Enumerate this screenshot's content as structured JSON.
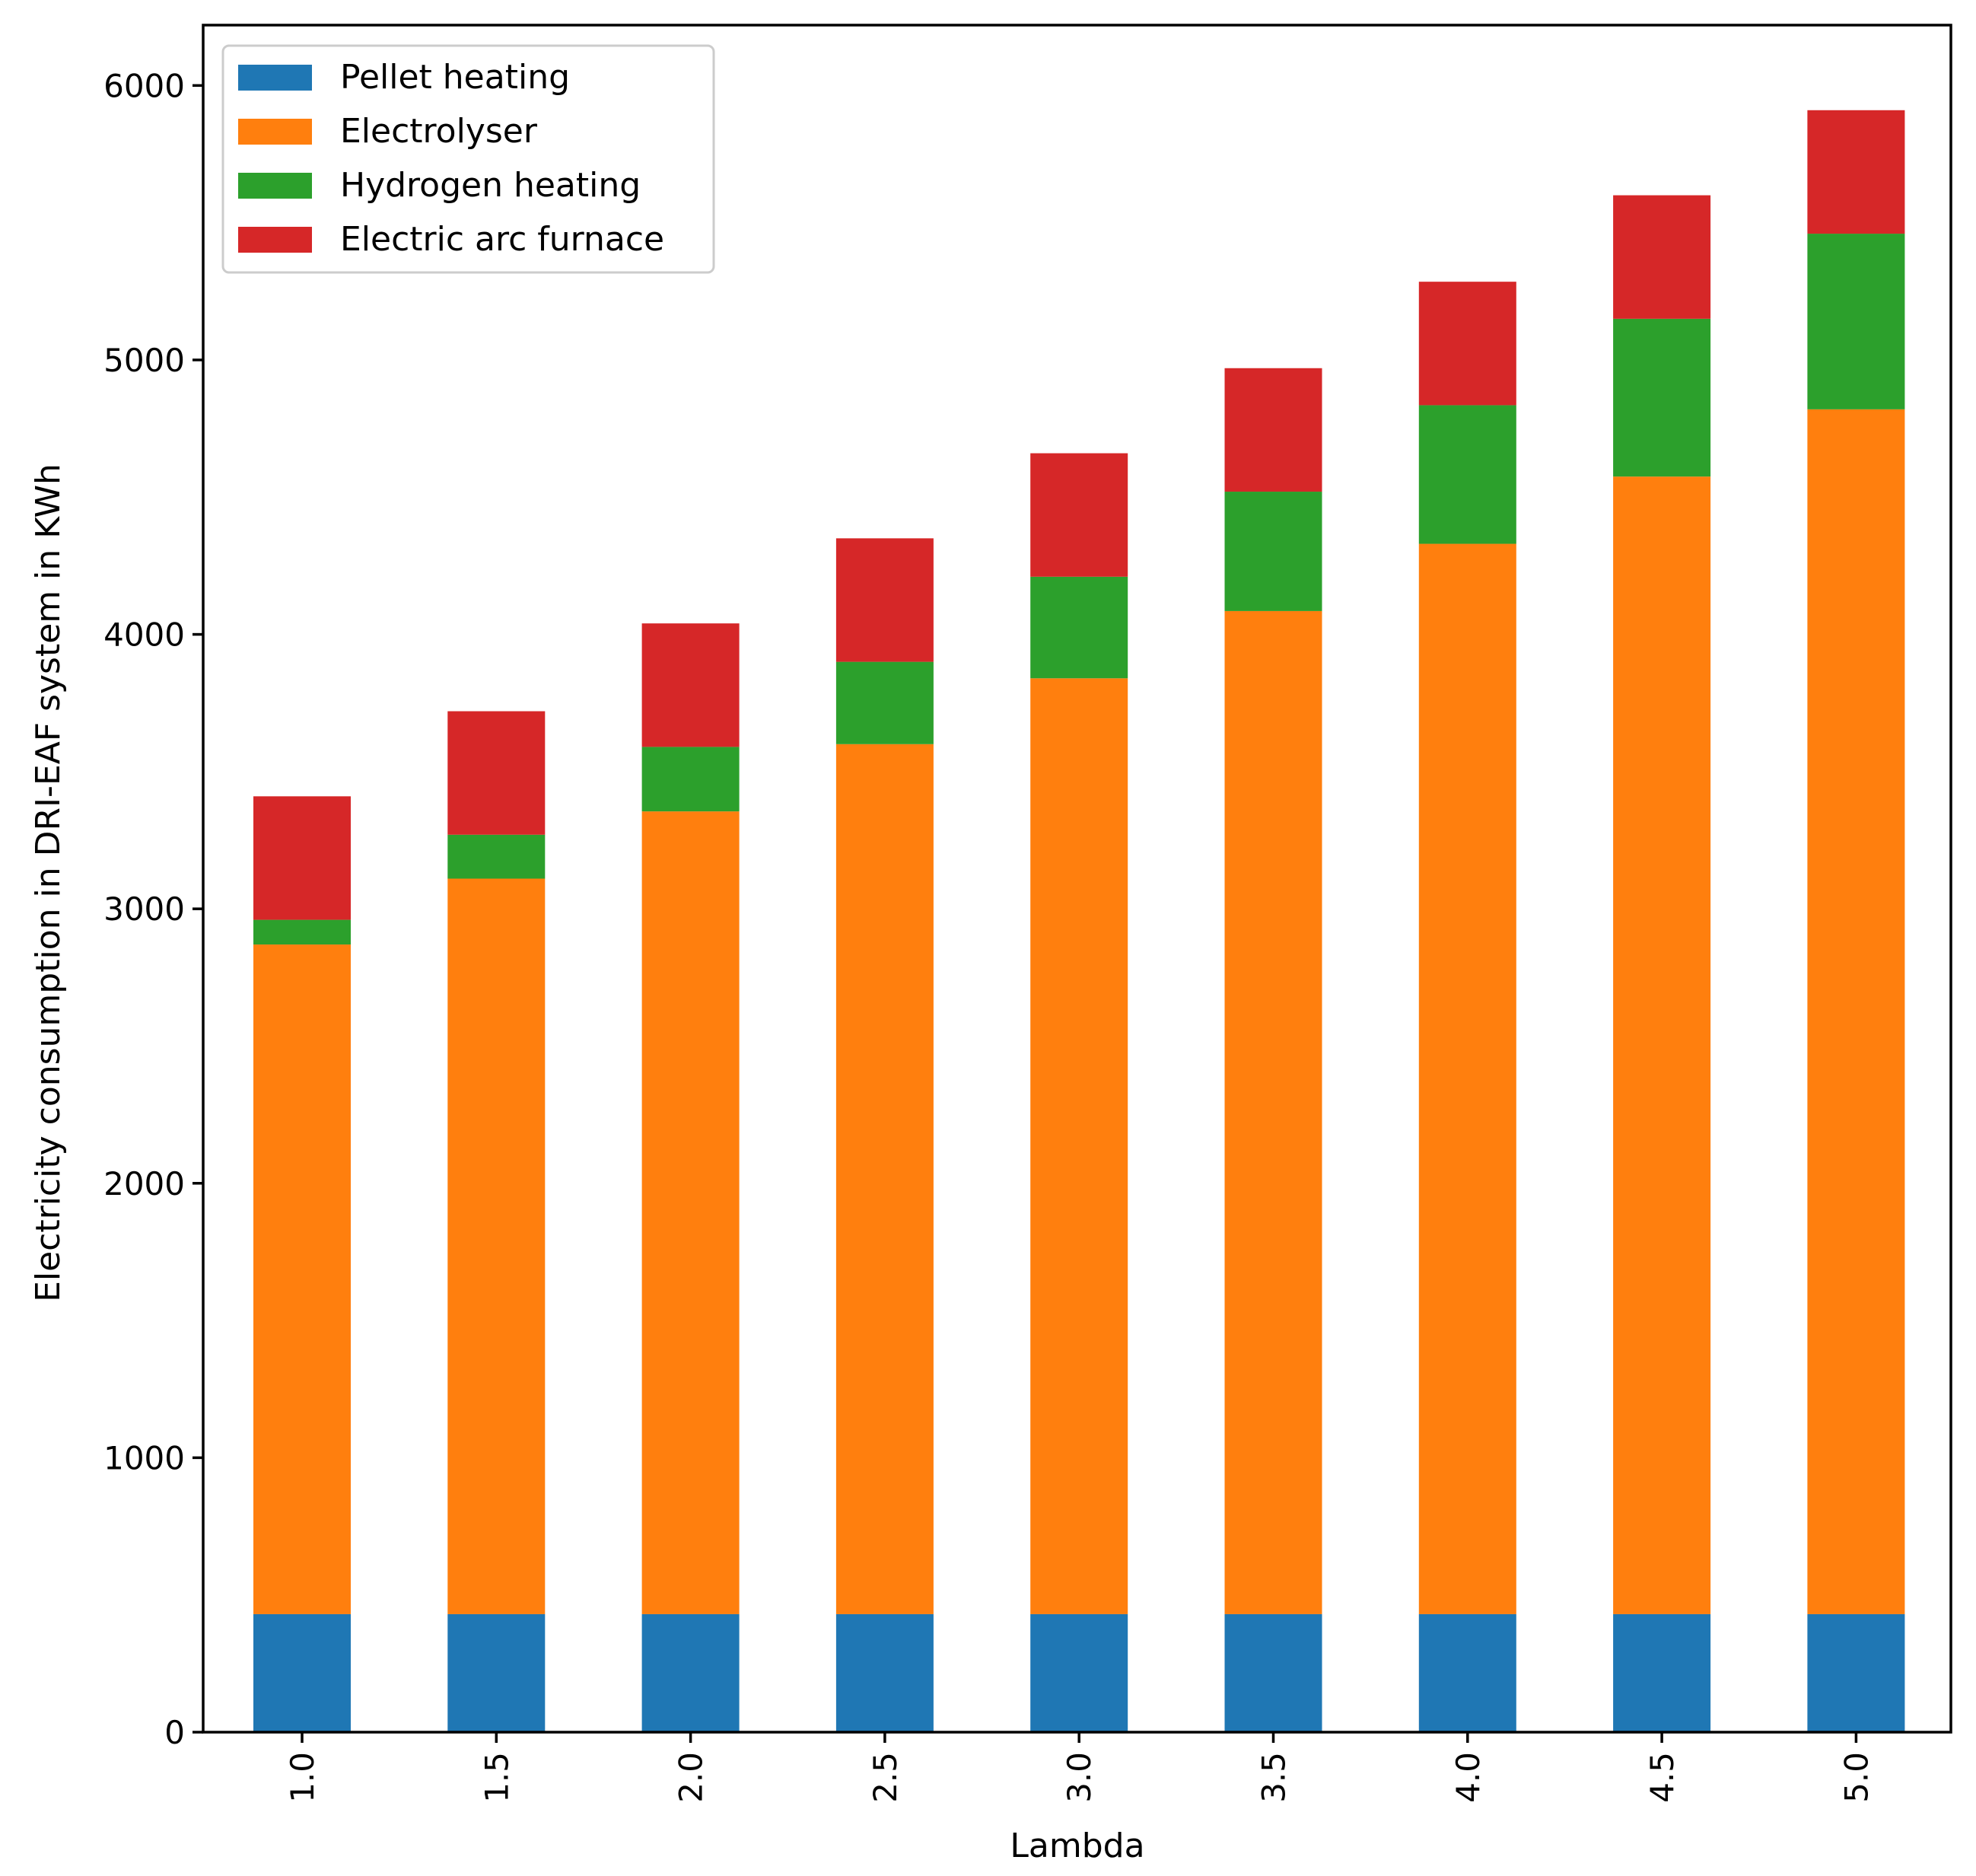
{
  "chart_data": {
    "type": "bar",
    "stacked": true,
    "title": "",
    "xlabel": "Lambda",
    "ylabel": "Electricity consumption in DRI-EAF system in KWh",
    "categories": [
      "1.0",
      "1.5",
      "2.0",
      "2.5",
      "3.0",
      "3.5",
      "4.0",
      "4.5",
      "5.0"
    ],
    "ylim": [
      0,
      6220
    ],
    "yticks": [
      0,
      1000,
      2000,
      3000,
      4000,
      5000,
      6000
    ],
    "grid": false,
    "legend_position": "top-left",
    "series": [
      {
        "name": "Pellet heating",
        "color": "#1f77b4",
        "values": [
          430,
          430,
          430,
          430,
          430,
          430,
          430,
          430,
          430
        ]
      },
      {
        "name": "Electrolyser",
        "color": "#ff7f0e",
        "values": [
          2440,
          2680,
          2925,
          3170,
          3410,
          3655,
          3900,
          4145,
          4390
        ]
      },
      {
        "name": "Hydrogen heating",
        "color": "#2ca02c",
        "values": [
          90,
          160,
          235,
          300,
          370,
          435,
          505,
          575,
          640
        ]
      },
      {
        "name": "Electric arc furnace",
        "color": "#d62728",
        "values": [
          450,
          450,
          450,
          450,
          450,
          450,
          450,
          450,
          450
        ]
      }
    ]
  }
}
